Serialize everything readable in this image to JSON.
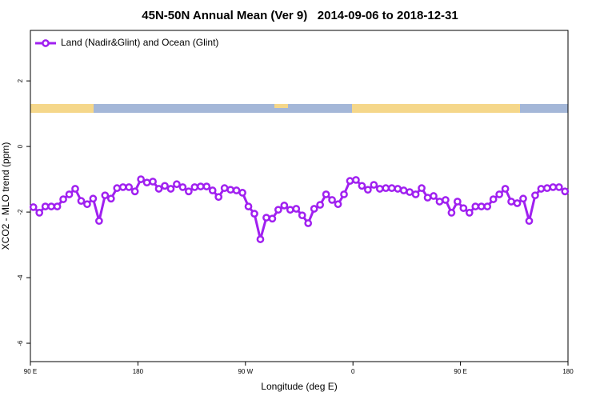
{
  "chart_data": {
    "type": "line",
    "title": "45N-50N Annual Mean (Ver 9)   2014-09-06 to 2018-12-31",
    "xlabel": "Longitude (deg E)",
    "ylabel": "XCO2 - MLO trend (ppm)",
    "xlim": [
      90,
      540
    ],
    "ylim": [
      -6.56,
      3.54
    ],
    "xticks": [
      {
        "value": 90,
        "label": "90 E"
      },
      180,
      {
        "value": 270,
        "label": "90 W"
      },
      {
        "value": 360,
        "label": "0"
      },
      {
        "value": 450,
        "label": "90 E"
      },
      {
        "value": 540,
        "label": "180"
      }
    ],
    "yticks": [
      2,
      0,
      -2,
      -4,
      -6
    ],
    "grid": false,
    "legend": "upper left",
    "x": [
      92.5,
      97.5,
      102.5,
      107.5,
      112.5,
      117.5,
      122.5,
      127.5,
      132.5,
      137.5,
      142.5,
      147.5,
      152.5,
      157.5,
      162.5,
      167.5,
      172.5,
      177.5,
      182.5,
      187.5,
      192.5,
      197.5,
      202.5,
      207.5,
      212.5,
      217.5,
      222.5,
      227.5,
      232.5,
      237.5,
      242.5,
      247.5,
      252.5,
      257.5,
      262.5,
      267.5,
      272.5,
      277.5,
      282.5,
      287.5,
      292.5,
      297.5,
      302.5,
      307.5,
      312.5,
      317.5,
      322.5,
      327.5,
      332.5,
      337.5,
      342.5,
      347.5,
      352.5,
      357.5,
      362.5,
      367.5,
      372.5,
      377.5,
      382.5,
      387.5,
      392.5,
      397.5,
      402.5,
      407.5,
      412.5,
      417.5,
      422.5,
      427.5,
      432.5,
      437.5,
      442.5,
      447.5,
      452.5,
      457.5,
      462.5,
      467.5,
      472.5,
      477.5,
      482.5,
      487.5,
      492.5,
      497.5,
      502.5,
      507.5,
      512.5,
      517.5,
      522.5,
      527.5,
      532.5,
      537.5
    ],
    "series": [
      {
        "name": "Land (Nadir&Glint) and Ocean (Glint)",
        "color": "#a020f0",
        "values": [
          -1.85,
          -2.02,
          -1.83,
          -1.83,
          -1.83,
          -1.61,
          -1.46,
          -1.29,
          -1.66,
          -1.76,
          -1.59,
          -2.27,
          -1.49,
          -1.59,
          -1.27,
          -1.24,
          -1.24,
          -1.37,
          -1.0,
          -1.1,
          -1.07,
          -1.29,
          -1.2,
          -1.29,
          -1.15,
          -1.24,
          -1.37,
          -1.24,
          -1.22,
          -1.22,
          -1.34,
          -1.54,
          -1.27,
          -1.32,
          -1.34,
          -1.41,
          -1.83,
          -2.05,
          -2.83,
          -2.17,
          -2.2,
          -1.93,
          -1.8,
          -1.93,
          -1.9,
          -2.1,
          -2.34,
          -1.9,
          -1.78,
          -1.46,
          -1.63,
          -1.76,
          -1.46,
          -1.05,
          -1.02,
          -1.2,
          -1.32,
          -1.17,
          -1.29,
          -1.27,
          -1.27,
          -1.29,
          -1.34,
          -1.39,
          -1.46,
          -1.27,
          -1.56,
          -1.51,
          -1.68,
          -1.63,
          -2.02,
          -1.68,
          -1.88,
          -2.02,
          -1.83,
          -1.83,
          -1.83,
          -1.61,
          -1.46,
          -1.29,
          -1.68,
          -1.73,
          -1.59,
          -2.27,
          -1.49,
          -1.29,
          -1.27,
          -1.24,
          -1.24,
          -1.37
        ]
      }
    ]
  }
}
